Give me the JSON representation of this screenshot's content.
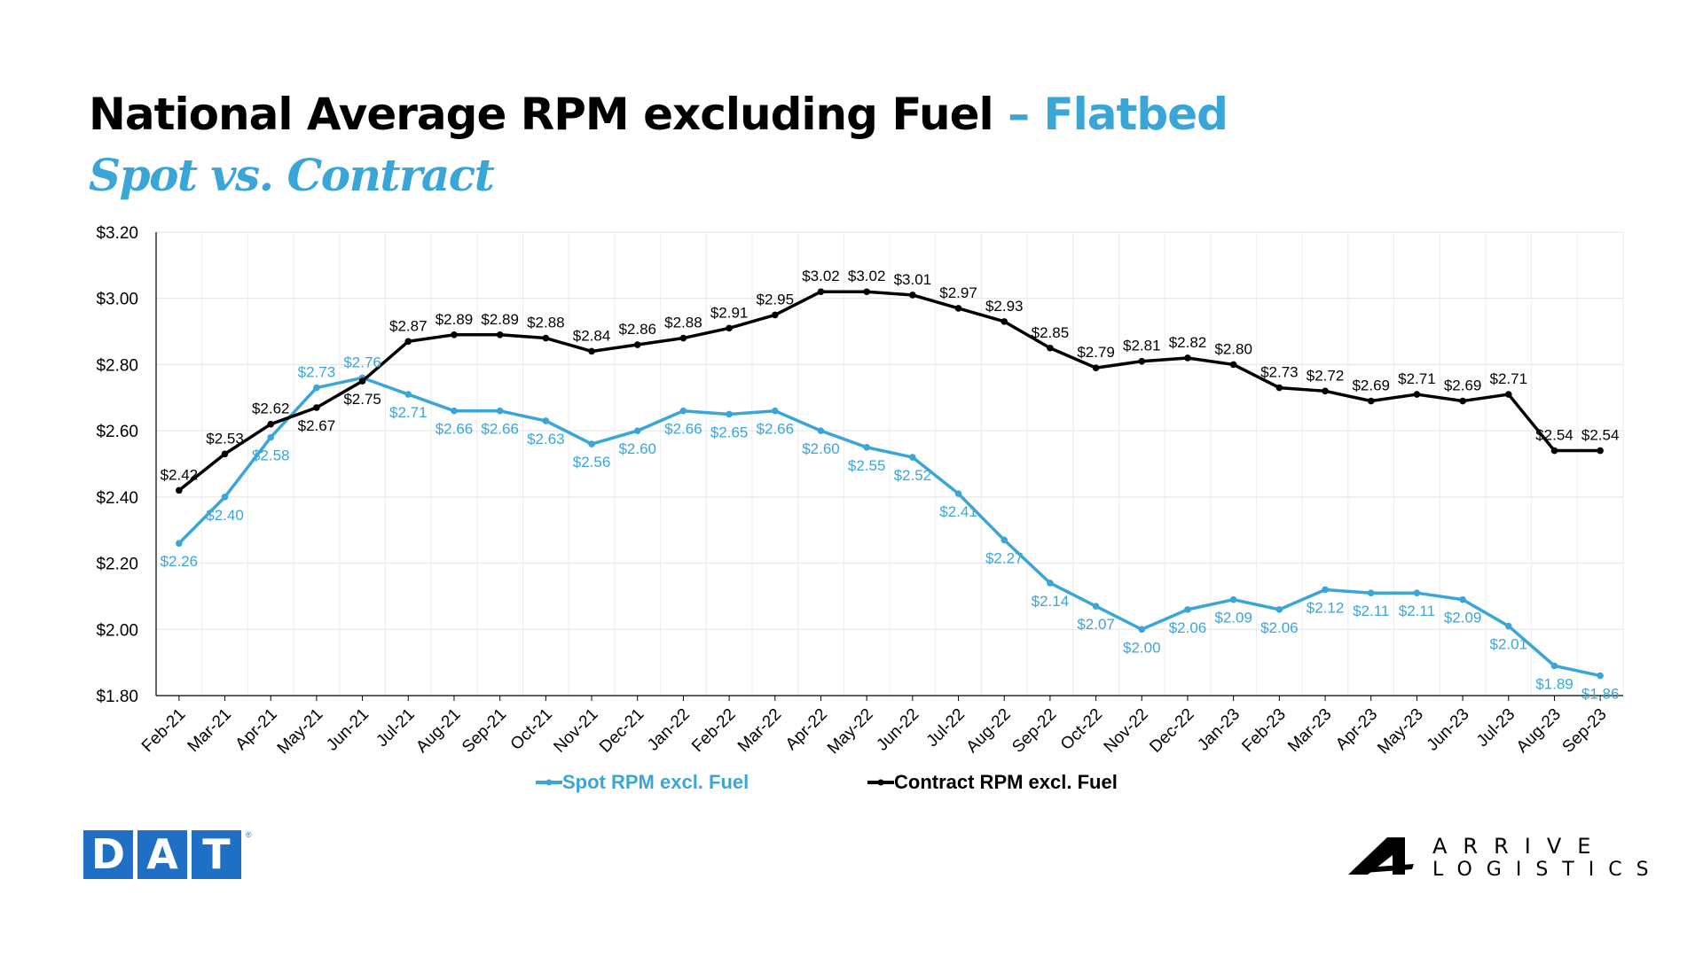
{
  "title": {
    "main": "National Average RPM excluding Fuel ",
    "accent": "– Flatbed",
    "subtitle": "Spot vs. Contract"
  },
  "colors": {
    "spot": "#3aa6d8",
    "contract": "#000000",
    "grid": "#e3e3e3",
    "dat_blue": "#1f6fc4"
  },
  "chart_data": {
    "type": "line",
    "categories": [
      "Feb-21",
      "Mar-21",
      "Apr-21",
      "May-21",
      "Jun-21",
      "Jul-21",
      "Aug-21",
      "Sep-21",
      "Oct-21",
      "Nov-21",
      "Dec-21",
      "Jan-22",
      "Feb-22",
      "Mar-22",
      "Apr-22",
      "May-22",
      "Jun-22",
      "Jul-22",
      "Aug-22",
      "Sep-22",
      "Oct-22",
      "Nov-22",
      "Dec-22",
      "Jan-23",
      "Feb-23",
      "Mar-23",
      "Apr-23",
      "May-23",
      "Jun-23",
      "Jul-23",
      "Aug-23",
      "Sep-23"
    ],
    "yticks": [
      "$3.20",
      "$3.00",
      "$2.80",
      "$2.60",
      "$2.40",
      "$2.20",
      "$2.00",
      "$1.80"
    ],
    "ylim": [
      1.8,
      3.2
    ],
    "grid": true,
    "legend": "bottom",
    "series": [
      {
        "name": "Spot RPM excl. Fuel",
        "values": [
          2.26,
          2.4,
          2.58,
          2.73,
          2.76,
          2.71,
          2.66,
          2.66,
          2.63,
          2.56,
          2.6,
          2.66,
          2.65,
          2.66,
          2.6,
          2.55,
          2.52,
          2.41,
          2.27,
          2.14,
          2.07,
          2.0,
          2.06,
          2.09,
          2.06,
          2.12,
          2.11,
          2.11,
          2.09,
          2.01,
          1.89,
          1.86
        ],
        "labels": [
          "$2.26",
          "$2.40",
          "$2.58",
          "$2.73",
          "$2.76",
          "$2.71",
          "$2.66",
          "$2.66",
          "$2.63",
          "$2.56",
          "$2.60",
          "$2.66",
          "$2.65",
          "$2.66",
          "$2.60",
          "$2.55",
          "$2.52",
          "$2.41",
          "$2.27",
          "$2.14",
          "$2.07",
          "$2.00",
          "$2.06",
          "$2.09",
          "$2.06",
          "$2.12",
          "$2.11",
          "$2.11",
          "$2.09",
          "$2.01",
          "$1.89",
          "$1.86"
        ]
      },
      {
        "name": "Contract RPM excl. Fuel",
        "values": [
          2.42,
          2.53,
          2.62,
          2.67,
          2.75,
          2.87,
          2.89,
          2.89,
          2.88,
          2.84,
          2.86,
          2.88,
          2.91,
          2.95,
          3.02,
          3.02,
          3.01,
          2.97,
          2.93,
          2.85,
          2.79,
          2.81,
          2.82,
          2.8,
          2.73,
          2.72,
          2.69,
          2.71,
          2.69,
          2.71,
          2.54,
          2.54
        ],
        "labels": [
          "$2.42",
          "$2.53",
          "$2.62",
          "$2.67",
          "$2.75",
          "$2.87",
          "$2.89",
          "$2.89",
          "$2.88",
          "$2.84",
          "$2.86",
          "$2.88",
          "$2.91",
          "$2.95",
          "$3.02",
          "$3.02",
          "$3.01",
          "$2.97",
          "$2.93",
          "$2.85",
          "$2.79",
          "$2.81",
          "$2.82",
          "$2.80",
          "$2.73",
          "$2.72",
          "$2.69",
          "$2.71",
          "$2.69",
          "$2.71",
          "$2.54",
          "$2.54"
        ]
      }
    ]
  },
  "logos": {
    "dat_letters": [
      "D",
      "A",
      "T"
    ],
    "dat_reg": "®",
    "arrive_line1": "ARRIVE",
    "arrive_line2": "LOGISTICS"
  }
}
